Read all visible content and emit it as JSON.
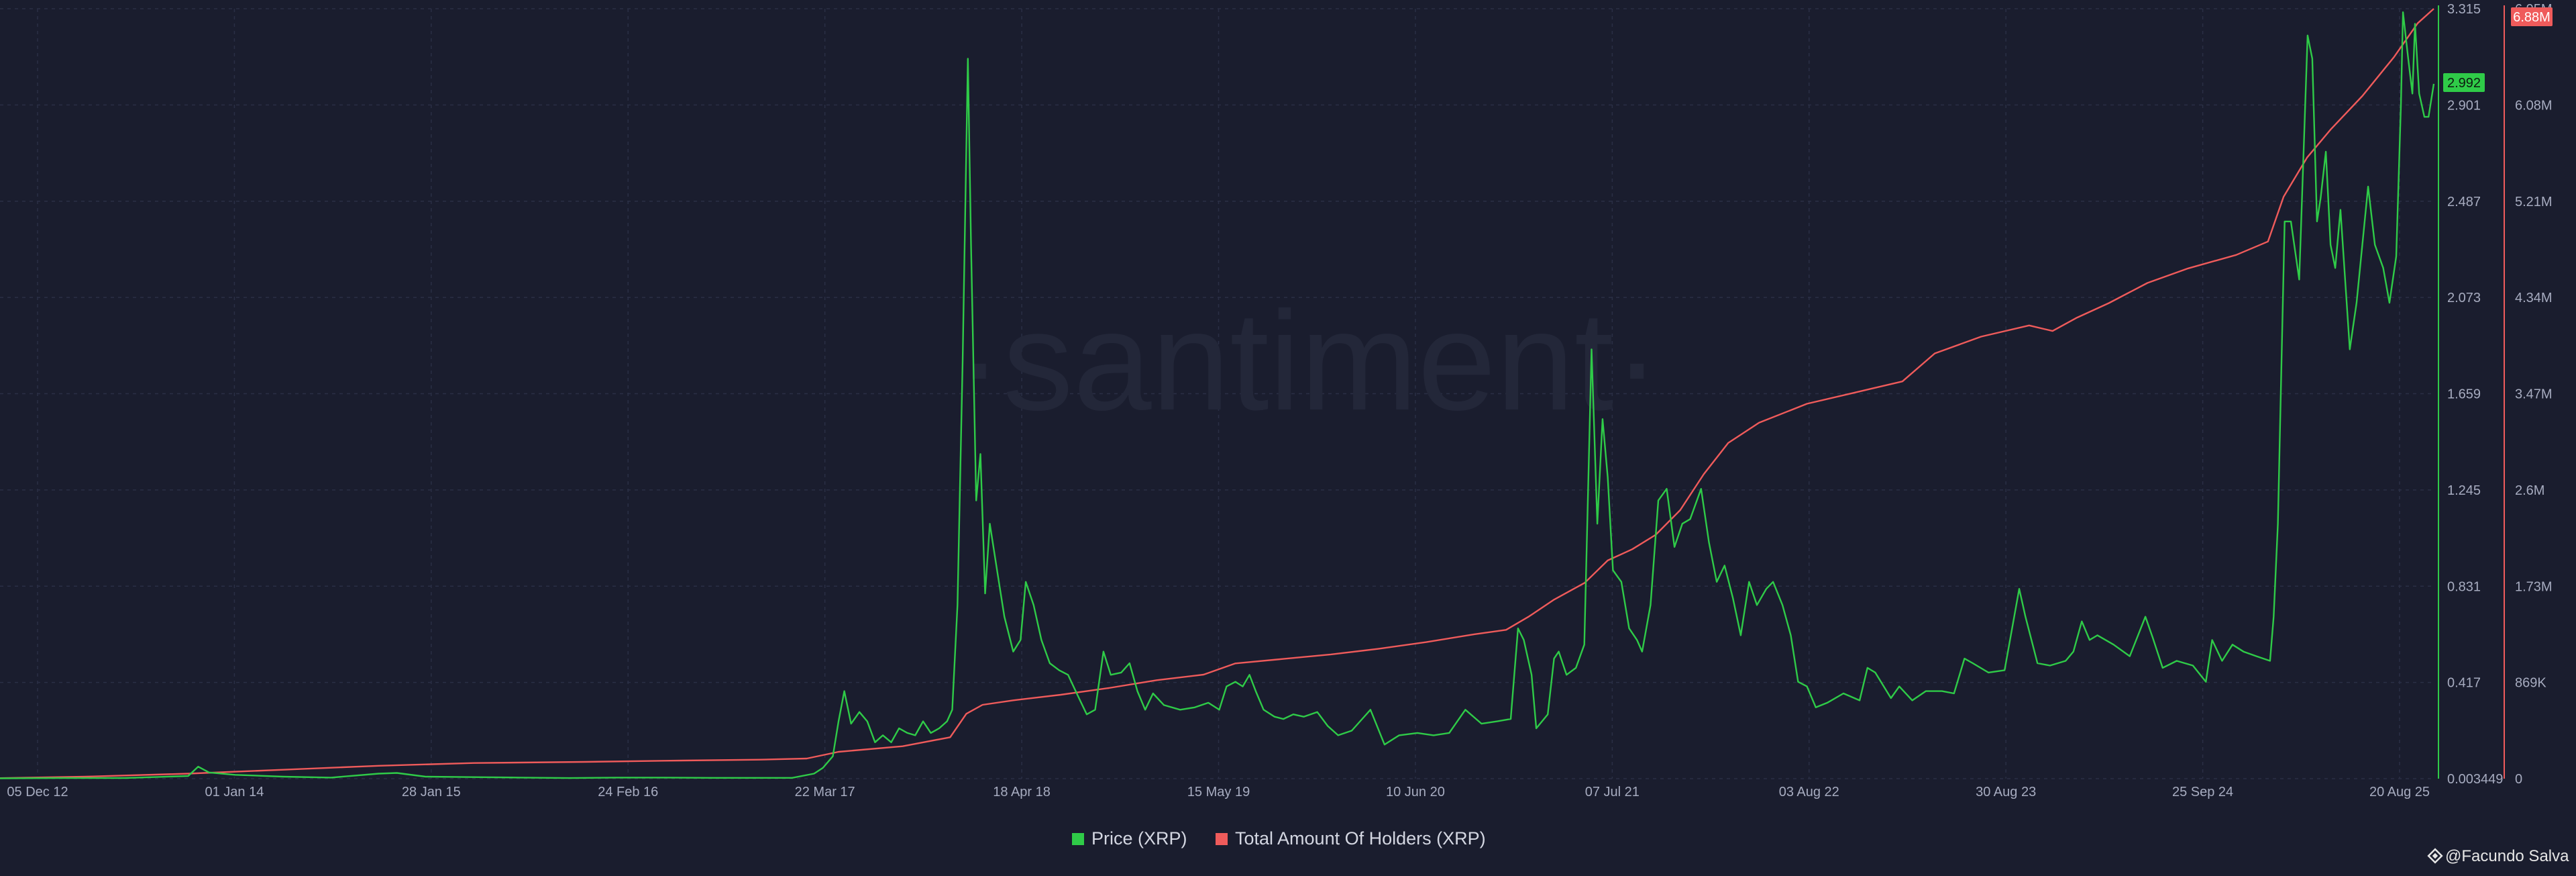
{
  "chart_data": {
    "type": "line",
    "title": "",
    "watermark": "·santiment·",
    "credit": "@Facundo Salva",
    "credit_icon": "binance-logo-icon",
    "x_ticks": [
      "05 Dec 12",
      "01 Jan 14",
      "28 Jan 15",
      "24 Feb 16",
      "22 Mar 17",
      "18 Apr 18",
      "15 May 19",
      "10 Jun 20",
      "07 Jul 21",
      "03 Aug 22",
      "30 Aug 23",
      "25 Sep 24",
      "20 Aug 25"
    ],
    "x_range": [
      "2012-12-05",
      "2025-09-15"
    ],
    "legend_position": "bottom-center",
    "grid": true,
    "colors": {
      "background": "#1a1d2e",
      "grid": "#2a2f45",
      "price": "#2fcb48",
      "holders": "#ef5b5b",
      "axis_text": "#a7acc0"
    },
    "axes": {
      "left": {
        "series": "Price (XRP)",
        "ylim": [
          0.003449,
          3.315
        ],
        "ticks": [
          "3.315",
          "2.901",
          "2.487",
          "2.073",
          "1.659",
          "1.245",
          "0.831",
          "0.417",
          "0.003449"
        ],
        "last_value": "2.992"
      },
      "right": {
        "series": "Total Amount Of Holders (XRP)",
        "ylim": [
          0,
          6880000
        ],
        "ticks": [
          "6.95M",
          "6.08M",
          "5.21M",
          "4.34M",
          "3.47M",
          "2.6M",
          "1.73M",
          "869K",
          "0"
        ],
        "last_value": "6.88M"
      }
    },
    "series": [
      {
        "name": "Price (XRP)",
        "axis": "left",
        "points": [
          [
            "2012-12-05",
            0.005
          ],
          [
            "2013-04-01",
            0.006
          ],
          [
            "2013-08-01",
            0.006
          ],
          [
            "2013-12-01",
            0.015
          ],
          [
            "2013-12-20",
            0.055
          ],
          [
            "2014-01-10",
            0.03
          ],
          [
            "2014-03-01",
            0.02
          ],
          [
            "2014-06-01",
            0.012
          ],
          [
            "2014-09-01",
            0.008
          ],
          [
            "2014-12-01",
            0.025
          ],
          [
            "2015-01-05",
            0.028
          ],
          [
            "2015-03-01",
            0.012
          ],
          [
            "2015-06-01",
            0.01
          ],
          [
            "2015-09-01",
            0.008
          ],
          [
            "2015-12-01",
            0.006
          ],
          [
            "2016-03-01",
            0.008
          ],
          [
            "2016-06-01",
            0.008
          ],
          [
            "2016-09-01",
            0.007
          ],
          [
            "2016-12-01",
            0.007
          ],
          [
            "2017-02-01",
            0.007
          ],
          [
            "2017-03-15",
            0.025
          ],
          [
            "2017-04-01",
            0.05
          ],
          [
            "2017-04-20",
            0.1
          ],
          [
            "2017-05-01",
            0.25
          ],
          [
            "2017-05-12",
            0.38
          ],
          [
            "2017-05-25",
            0.24
          ],
          [
            "2017-06-10",
            0.29
          ],
          [
            "2017-06-25",
            0.25
          ],
          [
            "2017-07-10",
            0.16
          ],
          [
            "2017-07-25",
            0.19
          ],
          [
            "2017-08-10",
            0.16
          ],
          [
            "2017-08-25",
            0.22
          ],
          [
            "2017-09-10",
            0.2
          ],
          [
            "2017-09-25",
            0.19
          ],
          [
            "2017-10-10",
            0.25
          ],
          [
            "2017-10-25",
            0.2
          ],
          [
            "2017-11-10",
            0.22
          ],
          [
            "2017-11-25",
            0.25
          ],
          [
            "2017-12-05",
            0.3
          ],
          [
            "2017-12-15",
            0.75
          ],
          [
            "2017-12-25",
            1.8
          ],
          [
            "2018-01-04",
            3.1
          ],
          [
            "2018-01-10",
            2.3
          ],
          [
            "2018-01-20",
            1.2
          ],
          [
            "2018-01-28",
            1.4
          ],
          [
            "2018-02-06",
            0.8
          ],
          [
            "2018-02-15",
            1.1
          ],
          [
            "2018-03-01",
            0.9
          ],
          [
            "2018-03-15",
            0.7
          ],
          [
            "2018-04-01",
            0.55
          ],
          [
            "2018-04-15",
            0.6
          ],
          [
            "2018-04-25",
            0.85
          ],
          [
            "2018-05-10",
            0.75
          ],
          [
            "2018-05-25",
            0.6
          ],
          [
            "2018-06-10",
            0.5
          ],
          [
            "2018-06-28",
            0.47
          ],
          [
            "2018-07-15",
            0.45
          ],
          [
            "2018-08-05",
            0.35
          ],
          [
            "2018-08-20",
            0.28
          ],
          [
            "2018-09-05",
            0.3
          ],
          [
            "2018-09-21",
            0.55
          ],
          [
            "2018-10-05",
            0.45
          ],
          [
            "2018-10-25",
            0.46
          ],
          [
            "2018-11-10",
            0.5
          ],
          [
            "2018-11-25",
            0.38
          ],
          [
            "2018-12-10",
            0.3
          ],
          [
            "2018-12-25",
            0.37
          ],
          [
            "2019-01-15",
            0.32
          ],
          [
            "2019-02-15",
            0.3
          ],
          [
            "2019-03-15",
            0.31
          ],
          [
            "2019-04-10",
            0.33
          ],
          [
            "2019-05-01",
            0.3
          ],
          [
            "2019-05-15",
            0.4
          ],
          [
            "2019-06-01",
            0.42
          ],
          [
            "2019-06-15",
            0.4
          ],
          [
            "2019-06-28",
            0.45
          ],
          [
            "2019-07-10",
            0.38
          ],
          [
            "2019-07-25",
            0.3
          ],
          [
            "2019-08-15",
            0.27
          ],
          [
            "2019-09-01",
            0.26
          ],
          [
            "2019-09-20",
            0.28
          ],
          [
            "2019-10-10",
            0.27
          ],
          [
            "2019-11-05",
            0.29
          ],
          [
            "2019-11-25",
            0.23
          ],
          [
            "2019-12-15",
            0.19
          ],
          [
            "2020-01-10",
            0.21
          ],
          [
            "2020-02-15",
            0.3
          ],
          [
            "2020-03-13",
            0.15
          ],
          [
            "2020-04-10",
            0.19
          ],
          [
            "2020-05-15",
            0.2
          ],
          [
            "2020-06-15",
            0.19
          ],
          [
            "2020-07-15",
            0.2
          ],
          [
            "2020-08-15",
            0.3
          ],
          [
            "2020-09-15",
            0.24
          ],
          [
            "2020-10-15",
            0.25
          ],
          [
            "2020-11-10",
            0.26
          ],
          [
            "2020-11-24",
            0.65
          ],
          [
            "2020-12-05",
            0.6
          ],
          [
            "2020-12-20",
            0.45
          ],
          [
            "2020-12-29",
            0.22
          ],
          [
            "2021-01-20",
            0.28
          ],
          [
            "2021-02-01",
            0.52
          ],
          [
            "2021-02-10",
            0.55
          ],
          [
            "2021-02-25",
            0.45
          ],
          [
            "2021-03-15",
            0.48
          ],
          [
            "2021-03-31",
            0.58
          ],
          [
            "2021-04-14",
            1.85
          ],
          [
            "2021-04-25",
            1.1
          ],
          [
            "2021-05-05",
            1.55
          ],
          [
            "2021-05-15",
            1.3
          ],
          [
            "2021-05-25",
            0.9
          ],
          [
            "2021-06-10",
            0.85
          ],
          [
            "2021-06-25",
            0.65
          ],
          [
            "2021-07-10",
            0.6
          ],
          [
            "2021-07-20",
            0.55
          ],
          [
            "2021-08-05",
            0.75
          ],
          [
            "2021-08-20",
            1.2
          ],
          [
            "2021-09-05",
            1.25
          ],
          [
            "2021-09-20",
            1.0
          ],
          [
            "2021-10-05",
            1.1
          ],
          [
            "2021-10-20",
            1.12
          ],
          [
            "2021-11-10",
            1.25
          ],
          [
            "2021-11-25",
            1.02
          ],
          [
            "2021-12-10",
            0.85
          ],
          [
            "2021-12-25",
            0.92
          ],
          [
            "2022-01-10",
            0.78
          ],
          [
            "2022-01-25",
            0.62
          ],
          [
            "2022-02-10",
            0.85
          ],
          [
            "2022-02-25",
            0.75
          ],
          [
            "2022-03-15",
            0.82
          ],
          [
            "2022-03-28",
            0.85
          ],
          [
            "2022-04-15",
            0.75
          ],
          [
            "2022-05-01",
            0.62
          ],
          [
            "2022-05-15",
            0.42
          ],
          [
            "2022-06-01",
            0.4
          ],
          [
            "2022-06-18",
            0.31
          ],
          [
            "2022-07-10",
            0.33
          ],
          [
            "2022-08-10",
            0.37
          ],
          [
            "2022-09-10",
            0.34
          ],
          [
            "2022-09-25",
            0.48
          ],
          [
            "2022-10-10",
            0.46
          ],
          [
            "2022-11-09",
            0.35
          ],
          [
            "2022-11-25",
            0.4
          ],
          [
            "2022-12-20",
            0.34
          ],
          [
            "2023-01-15",
            0.38
          ],
          [
            "2023-02-15",
            0.38
          ],
          [
            "2023-03-10",
            0.37
          ],
          [
            "2023-03-30",
            0.52
          ],
          [
            "2023-04-15",
            0.5
          ],
          [
            "2023-05-15",
            0.46
          ],
          [
            "2023-06-15",
            0.47
          ],
          [
            "2023-07-13",
            0.82
          ],
          [
            "2023-07-25",
            0.7
          ],
          [
            "2023-08-17",
            0.5
          ],
          [
            "2023-09-10",
            0.49
          ],
          [
            "2023-10-10",
            0.51
          ],
          [
            "2023-10-25",
            0.55
          ],
          [
            "2023-11-10",
            0.68
          ],
          [
            "2023-11-25",
            0.6
          ],
          [
            "2023-12-10",
            0.62
          ],
          [
            "2024-01-10",
            0.58
          ],
          [
            "2024-02-10",
            0.53
          ],
          [
            "2024-03-11",
            0.7
          ],
          [
            "2024-03-25",
            0.61
          ],
          [
            "2024-04-13",
            0.48
          ],
          [
            "2024-05-10",
            0.51
          ],
          [
            "2024-06-10",
            0.49
          ],
          [
            "2024-07-05",
            0.42
          ],
          [
            "2024-07-17",
            0.6
          ],
          [
            "2024-08-05",
            0.51
          ],
          [
            "2024-08-25",
            0.58
          ],
          [
            "2024-09-15",
            0.55
          ],
          [
            "2024-10-10",
            0.53
          ],
          [
            "2024-11-05",
            0.51
          ],
          [
            "2024-11-12",
            0.7
          ],
          [
            "2024-11-20",
            1.1
          ],
          [
            "2024-12-03",
            2.4
          ],
          [
            "2024-12-15",
            2.4
          ],
          [
            "2024-12-31",
            2.15
          ],
          [
            "2025-01-16",
            3.2
          ],
          [
            "2025-01-25",
            3.1
          ],
          [
            "2025-02-03",
            2.4
          ],
          [
            "2025-02-10",
            2.5
          ],
          [
            "2025-02-20",
            2.7
          ],
          [
            "2025-03-01",
            2.3
          ],
          [
            "2025-03-10",
            2.2
          ],
          [
            "2025-03-20",
            2.45
          ],
          [
            "2025-04-07",
            1.85
          ],
          [
            "2025-04-20",
            2.05
          ],
          [
            "2025-05-12",
            2.55
          ],
          [
            "2025-05-25",
            2.3
          ],
          [
            "2025-06-10",
            2.2
          ],
          [
            "2025-06-22",
            2.05
          ],
          [
            "2025-07-05",
            2.25
          ],
          [
            "2025-07-14",
            2.9
          ],
          [
            "2025-07-18",
            3.3
          ],
          [
            "2025-07-28",
            3.1
          ],
          [
            "2025-08-05",
            2.95
          ],
          [
            "2025-08-10",
            3.25
          ],
          [
            "2025-08-18",
            2.95
          ],
          [
            "2025-08-28",
            2.85
          ],
          [
            "2025-09-05",
            2.85
          ],
          [
            "2025-09-15",
            2.992
          ]
        ]
      },
      {
        "name": "Total Amount Of Holders (XRP)",
        "axis": "right",
        "points": [
          [
            "2012-12-05",
            5000
          ],
          [
            "2013-06-01",
            20000
          ],
          [
            "2013-12-01",
            45000
          ],
          [
            "2014-06-01",
            80000
          ],
          [
            "2014-12-01",
            115000
          ],
          [
            "2015-06-01",
            140000
          ],
          [
            "2016-01-01",
            150000
          ],
          [
            "2016-06-01",
            160000
          ],
          [
            "2016-12-01",
            170000
          ],
          [
            "2017-03-01",
            180000
          ],
          [
            "2017-05-01",
            240000
          ],
          [
            "2017-09-01",
            290000
          ],
          [
            "2017-12-01",
            370000
          ],
          [
            "2018-01-01",
            580000
          ],
          [
            "2018-02-01",
            660000
          ],
          [
            "2018-04-01",
            700000
          ],
          [
            "2018-07-01",
            750000
          ],
          [
            "2018-10-01",
            810000
          ],
          [
            "2019-01-01",
            880000
          ],
          [
            "2019-04-01",
            930000
          ],
          [
            "2019-06-01",
            1030000
          ],
          [
            "2019-09-01",
            1070000
          ],
          [
            "2019-12-01",
            1110000
          ],
          [
            "2020-03-01",
            1160000
          ],
          [
            "2020-06-01",
            1220000
          ],
          [
            "2020-09-01",
            1290000
          ],
          [
            "2020-11-01",
            1330000
          ],
          [
            "2020-12-15",
            1450000
          ],
          [
            "2021-02-01",
            1600000
          ],
          [
            "2021-04-01",
            1750000
          ],
          [
            "2021-05-15",
            1950000
          ],
          [
            "2021-07-01",
            2050000
          ],
          [
            "2021-08-15",
            2180000
          ],
          [
            "2021-10-01",
            2400000
          ],
          [
            "2021-11-15",
            2720000
          ],
          [
            "2022-01-01",
            3000000
          ],
          [
            "2022-03-01",
            3180000
          ],
          [
            "2022-06-01",
            3350000
          ],
          [
            "2022-09-01",
            3450000
          ],
          [
            "2022-12-01",
            3550000
          ],
          [
            "2023-02-01",
            3800000
          ],
          [
            "2023-05-01",
            3950000
          ],
          [
            "2023-08-01",
            4050000
          ],
          [
            "2023-09-15",
            4000000
          ],
          [
            "2023-11-01",
            4120000
          ],
          [
            "2024-01-01",
            4250000
          ],
          [
            "2024-03-15",
            4430000
          ],
          [
            "2024-06-01",
            4560000
          ],
          [
            "2024-09-01",
            4680000
          ],
          [
            "2024-11-01",
            4800000
          ],
          [
            "2024-12-01",
            5200000
          ],
          [
            "2025-01-15",
            5550000
          ],
          [
            "2025-03-01",
            5800000
          ],
          [
            "2025-05-01",
            6100000
          ],
          [
            "2025-07-01",
            6450000
          ],
          [
            "2025-08-15",
            6750000
          ],
          [
            "2025-09-15",
            6880000
          ]
        ]
      }
    ]
  }
}
